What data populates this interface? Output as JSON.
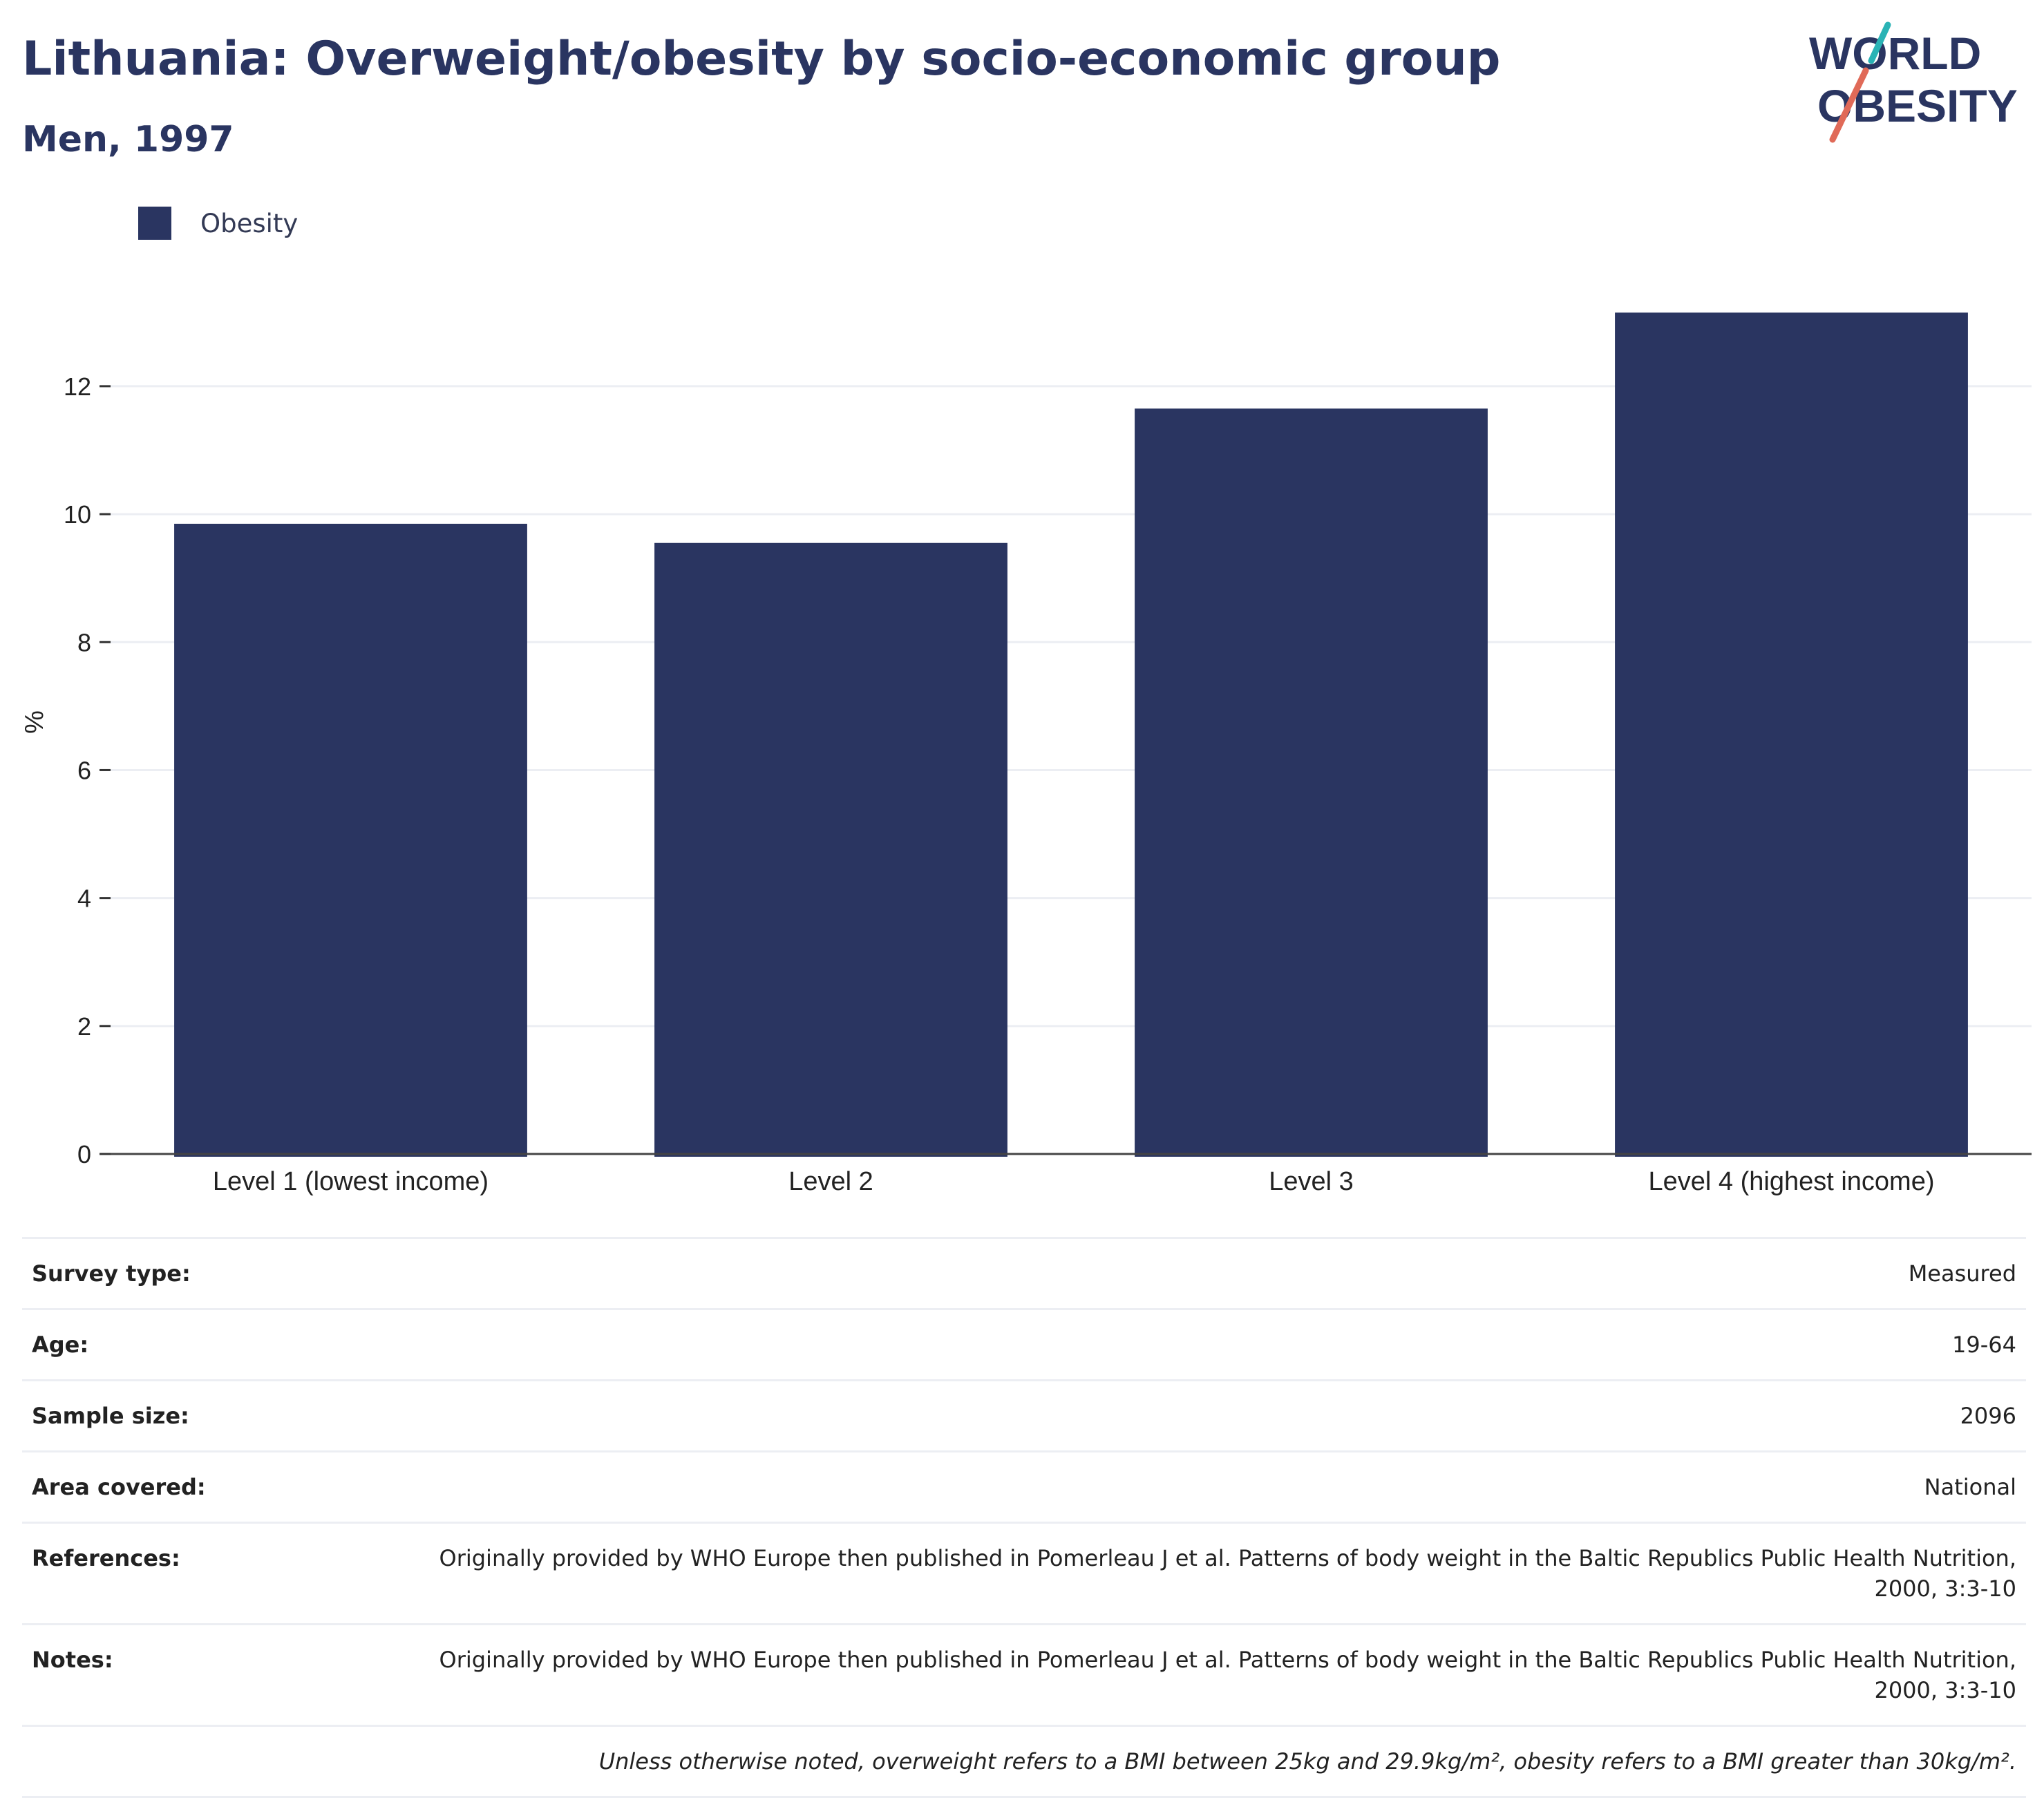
{
  "header": {
    "title": "Lithuania: Overweight/obesity by socio-economic group",
    "subtitle": "Men, 1997"
  },
  "logo": {
    "line1": "WORLD",
    "line2": "OBESITY",
    "colors": {
      "text": "#2a3561",
      "teal": "#2ab3b5",
      "coral": "#e06a58"
    }
  },
  "legend": {
    "items": [
      {
        "label": "Obesity",
        "color": "#2a3561"
      }
    ]
  },
  "chart_data": {
    "type": "bar",
    "categories": [
      "Level 1 (lowest income)",
      "Level 2",
      "Level 3",
      "Level 4 (highest income)"
    ],
    "series": [
      {
        "name": "Obesity",
        "values": [
          9.85,
          9.55,
          11.65,
          13.15
        ],
        "color": "#2a3561"
      }
    ],
    "title": "Lithuania: Overweight/obesity by socio-economic group",
    "subtitle": "Men, 1997",
    "xlabel": "",
    "ylabel": "%",
    "ylim": [
      0,
      13.5
    ],
    "yticks": [
      0,
      2,
      4,
      6,
      8,
      10,
      12
    ],
    "grid": true,
    "legend_position": "top-left"
  },
  "details": {
    "rows": [
      {
        "key": "Survey type:",
        "value": "Measured"
      },
      {
        "key": "Age:",
        "value": "19-64"
      },
      {
        "key": "Sample size:",
        "value": "2096"
      },
      {
        "key": "Area covered:",
        "value": "National"
      },
      {
        "key": "References:",
        "value": "Originally provided by WHO Europe then published in Pomerleau J et al. Patterns of body weight in the Baltic Republics Public Health Nutrition, 2000, 3:3-10"
      },
      {
        "key": "Notes:",
        "value": "Originally provided by WHO Europe then published in Pomerleau J et al. Patterns of body weight in the Baltic Republics Public Health Nutrition, 2000, 3:3-10"
      }
    ],
    "footnote": "Unless otherwise noted, overweight refers to a BMI between 25kg and 29.9kg/m², obesity refers to a BMI greater than 30kg/m²."
  }
}
